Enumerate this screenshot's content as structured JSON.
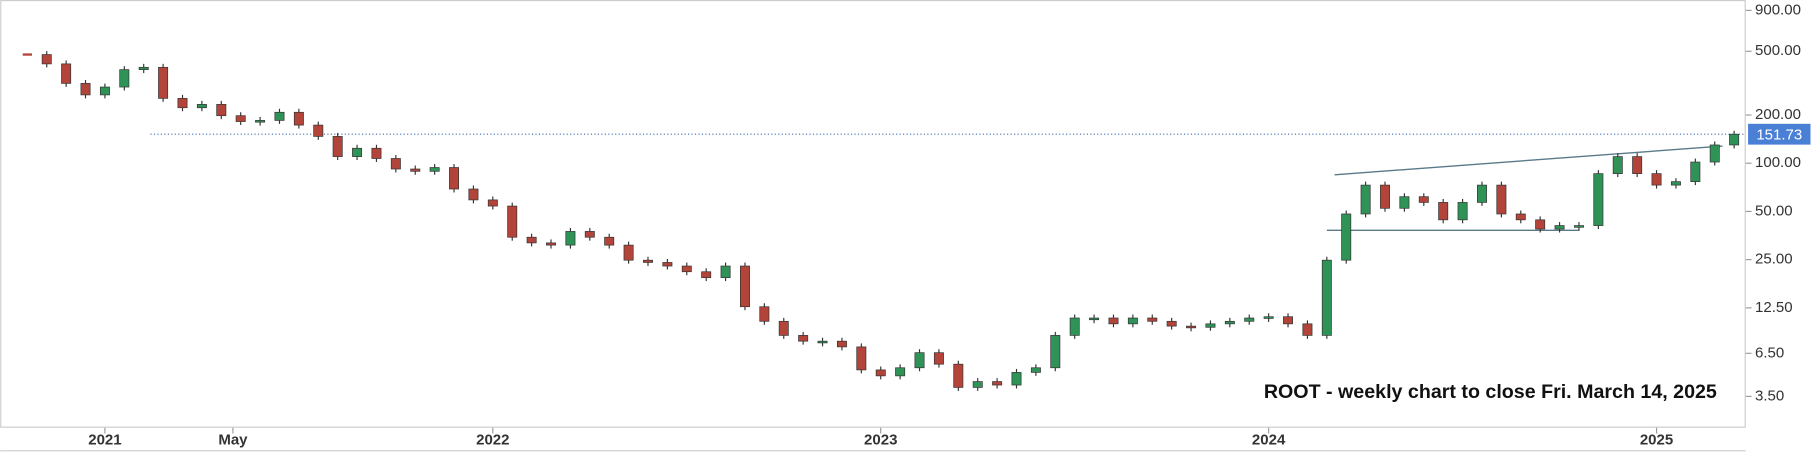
{
  "chart_data": {
    "type": "candlestick",
    "annotation": "ROOT - weekly chart to close Fri. March 14, 2025",
    "log_scale": true,
    "up_color": "#2f9358",
    "down_color": "#b3443a",
    "x": [
      2020.8,
      2020.85,
      2020.9,
      2020.95,
      2021.0,
      2021.05,
      2021.1,
      2021.15,
      2021.2,
      2021.25,
      2021.3,
      2021.35,
      2021.4,
      2021.45,
      2021.5,
      2021.55,
      2021.6,
      2021.65,
      2021.7,
      2021.75,
      2021.8,
      2021.85,
      2021.9,
      2021.95,
      2022.0,
      2022.05,
      2022.1,
      2022.15,
      2022.2,
      2022.25,
      2022.3,
      2022.35,
      2022.4,
      2022.45,
      2022.5,
      2022.55,
      2022.6,
      2022.65,
      2022.7,
      2022.75,
      2022.8,
      2022.85,
      2022.9,
      2022.95,
      2023.0,
      2023.05,
      2023.1,
      2023.15,
      2023.2,
      2023.25,
      2023.3,
      2023.35,
      2023.4,
      2023.45,
      2023.5,
      2023.55,
      2023.6,
      2023.65,
      2023.7,
      2023.75,
      2023.8,
      2023.85,
      2023.9,
      2023.95,
      2024.0,
      2024.05,
      2024.1,
      2024.15,
      2024.2,
      2024.25,
      2024.3,
      2024.35,
      2024.4,
      2024.45,
      2024.5,
      2024.55,
      2024.6,
      2024.65,
      2024.7,
      2024.75,
      2024.8,
      2024.85,
      2024.9,
      2024.95,
      2025.0,
      2025.05,
      2025.1,
      2025.15,
      2025.2
    ],
    "close": [
      477,
      417,
      315,
      267,
      299,
      384,
      397,
      254,
      222,
      233,
      198,
      182,
      185,
      208,
      173,
      147,
      110,
      124,
      107,
      92,
      89,
      94,
      69,
      59,
      54,
      34.5,
      31.8,
      30.8,
      37.5,
      34.5,
      30.8,
      24.8,
      24.0,
      22.8,
      21.0,
      19.3,
      22.8,
      12.7,
      10.3,
      8.41,
      7.74,
      7.74,
      7.13,
      5.12,
      4.7,
      5.28,
      6.56,
      5.56,
      3.98,
      4.33,
      4.12,
      4.94,
      5.28,
      8.41,
      10.8,
      10.8,
      9.93,
      10.8,
      10.3,
      9.61,
      9.45,
      9.93,
      10.3,
      10.8,
      11.0,
      9.93,
      8.41,
      24.8,
      48.2,
      73,
      52.3,
      61.8,
      56.9,
      44.3,
      56.9,
      73,
      48.2,
      44.3,
      38.8,
      40.8,
      40.8,
      86.1,
      110,
      86.1,
      73,
      76.7,
      101.7,
      130,
      151.73
    ],
    "last_price": 151.73,
    "price_tag_color": "#4a7fd6",
    "trendlines": [
      {
        "x": [
          2024.17,
          2025.17
        ],
        "y": [
          84.7,
          128
        ]
      },
      {
        "x": [
          2024.15,
          2024.8
        ],
        "y": [
          38.1,
          38.1
        ]
      }
    ],
    "xlim": [
      2020.73,
      2025.23
    ],
    "xticks": [
      2021,
      {
        "value": 2021.33,
        "label": "May"
      },
      2022,
      2023,
      2024,
      2025
    ],
    "ylim": [
      2.23,
      1045
    ],
    "yticks": [
      {
        "value": 900,
        "label": "900.00"
      },
      {
        "value": 500,
        "label": "500.00"
      },
      {
        "value": 200,
        "label": "200.00"
      },
      {
        "value": 100,
        "label": "100.00"
      },
      {
        "value": 50,
        "label": "50.00"
      },
      {
        "value": 25,
        "label": "25.00"
      },
      {
        "value": 12.5,
        "label": "12.50"
      },
      {
        "value": 6.5,
        "label": "6.50"
      },
      {
        "value": 3.5,
        "label": "3.50"
      }
    ]
  }
}
